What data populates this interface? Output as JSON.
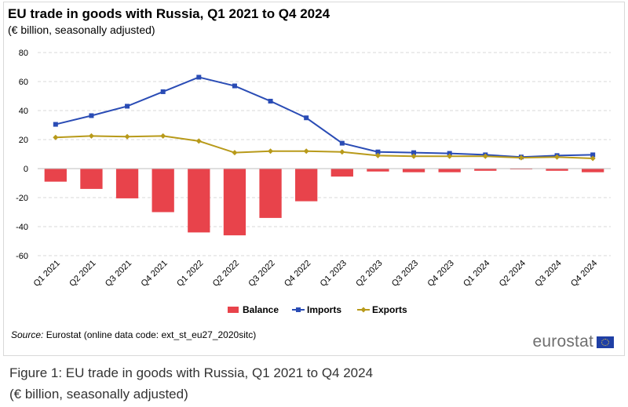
{
  "header": {
    "title": "EU trade in goods with Russia, Q1 2021 to Q4 2024",
    "subtitle": "(€ billion, seasonally adjusted)"
  },
  "source": {
    "label": "Source:",
    "text": " Eurostat (online data code: ext_st_eu27_2020sitc)"
  },
  "logo": {
    "text": "eurostat"
  },
  "caption": {
    "line1": "Figure 1: EU trade in goods with Russia, Q1 2021 to Q4 2024",
    "line2": "(€ billion, seasonally adjusted)"
  },
  "colors": {
    "balance": "#e8434b",
    "imports": "#2a4cb5",
    "exports": "#b89a1a",
    "grid": "#d9d9d9"
  },
  "chart_data": {
    "type": "bar",
    "title": "EU trade in goods with Russia, Q1 2021 to Q4 2024",
    "subtitle": "(€ billion, seasonally adjusted)",
    "ylim": [
      -60,
      80
    ],
    "yticks": [
      80,
      60,
      40,
      20,
      0,
      -20,
      -40,
      -60
    ],
    "grid": true,
    "legend_position": "bottom",
    "categories": [
      "Q1 2021",
      "Q2 2021",
      "Q3 2021",
      "Q4 2021",
      "Q1 2022",
      "Q2 2022",
      "Q3 2022",
      "Q4 2022",
      "Q1 2023",
      "Q2 2023",
      "Q3 2023",
      "Q4 2023",
      "Q1 2024",
      "Q2 2024",
      "Q3 2024",
      "Q4 2024"
    ],
    "series": [
      {
        "name": "Balance",
        "type": "bar",
        "values": [
          -9,
          -14,
          -20.5,
          -30,
          -44,
          -46,
          -34,
          -22.5,
          -5.5,
          -2,
          -2.5,
          -2.5,
          -1.5,
          -0.5,
          -1.5,
          -2.5
        ]
      },
      {
        "name": "Imports",
        "type": "line",
        "values": [
          30.5,
          36.5,
          43,
          53,
          63,
          57,
          46.5,
          35,
          17.5,
          11.5,
          11,
          10.5,
          9.5,
          8,
          9,
          9.5
        ]
      },
      {
        "name": "Exports",
        "type": "line",
        "values": [
          21.5,
          22.5,
          22,
          22.5,
          19,
          11,
          12,
          12,
          11.5,
          9,
          8.5,
          8.5,
          8.5,
          7.5,
          8,
          7
        ]
      }
    ]
  }
}
